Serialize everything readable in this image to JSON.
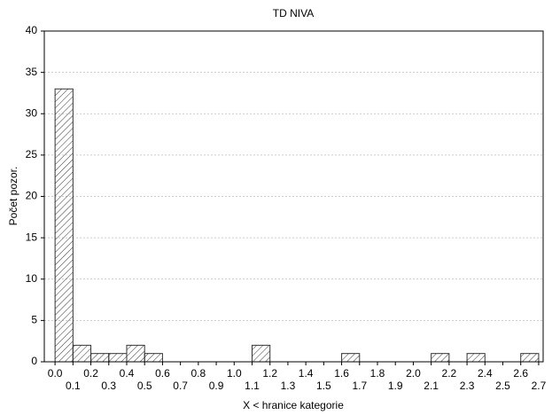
{
  "chart_data": {
    "type": "histogram",
    "title": "TD NIVA",
    "x_label": "X < hranice kategorie",
    "y_label": "Počet pozor.",
    "bins": [
      0,
      0.1,
      0.2,
      0.3,
      0.4,
      0.5,
      0.6,
      0.7,
      0.8,
      0.9,
      1,
      1.1,
      1.2,
      1.3,
      1.4,
      1.5,
      1.6,
      1.7,
      1.8,
      1.9,
      2,
      2.1,
      2.2,
      2.3,
      2.4,
      2.5,
      2.6,
      2.7
    ],
    "values": [
      33,
      2,
      1,
      1,
      2,
      1,
      0,
      0,
      0,
      0,
      0,
      2,
      0,
      0,
      0,
      0,
      1,
      0,
      0,
      0,
      0,
      1,
      0,
      1,
      0,
      0,
      1
    ],
    "color": "#333333",
    "xlim": [
      -0.06,
      2.725
    ],
    "ylim": [
      0,
      40
    ],
    "xticks": [
      {
        "value": 0,
        "label": "0.0"
      },
      0.1,
      0.2,
      0.3,
      0.4,
      0.5,
      0.6,
      0.7,
      0.8,
      0.9,
      {
        "value": 1,
        "label": "1.0"
      },
      1.1,
      1.2,
      1.3,
      1.4,
      1.5,
      1.6,
      1.7,
      1.8,
      1.9,
      {
        "value": 2,
        "label": "2.0"
      },
      2.1,
      2.2,
      2.3,
      2.4,
      2.5,
      2.6,
      2.7
    ],
    "yticks": [
      0,
      5,
      10,
      15,
      20,
      25,
      30,
      35,
      40
    ],
    "grid": true
  }
}
